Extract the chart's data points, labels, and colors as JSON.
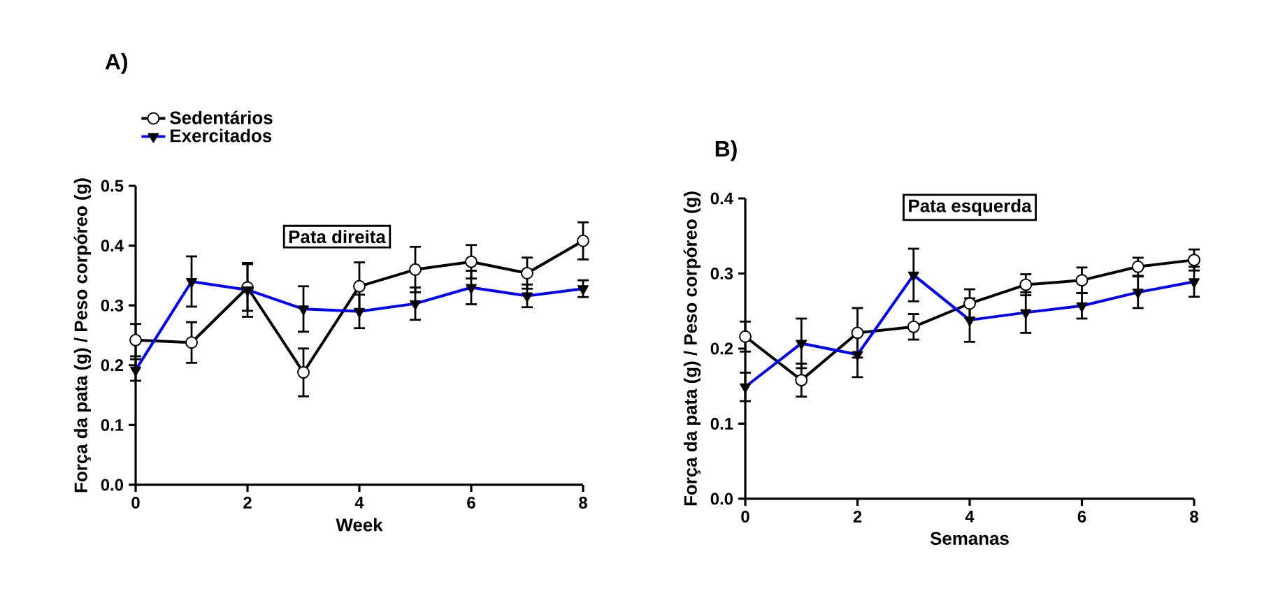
{
  "chart_data": [
    {
      "type": "line",
      "title": "A)",
      "xlabel": "Week",
      "ylabel": "Força da pata (g) / Peso corpóreo (g)",
      "annotations": [
        "Pata direita"
      ],
      "x": [
        0,
        1,
        2,
        3,
        4,
        5,
        6,
        7,
        8
      ],
      "xlim": [
        0,
        8
      ],
      "xticks": [
        0,
        2,
        4,
        6,
        8
      ],
      "ylim": [
        0,
        0.5
      ],
      "yticks": [
        {
          "value": 0,
          "label": "0.0"
        },
        0.1,
        0.2,
        0.3,
        0.4,
        0.5
      ],
      "legend": "top left",
      "grid": false,
      "line_style": "solid",
      "series": [
        {
          "name": "Sedentários",
          "color": "#000000",
          "marker": "circle",
          "values": [
            0.242,
            0.238,
            0.33,
            0.188,
            0.332,
            0.36,
            0.373,
            0.354,
            0.408
          ],
          "errors": [
            0.027,
            0.034,
            0.039,
            0.04,
            0.04,
            0.038,
            0.028,
            0.026,
            0.031
          ]
        },
        {
          "name": "Exercitados",
          "color": "#0000ff",
          "marker": "triangle",
          "values": [
            0.192,
            0.34,
            0.326,
            0.294,
            0.29,
            0.303,
            0.33,
            0.316,
            0.328
          ],
          "errors": [
            0.018,
            0.042,
            0.045,
            0.038,
            0.028,
            0.027,
            0.028,
            0.019,
            0.014
          ]
        }
      ]
    },
    {
      "type": "line",
      "title": "B)",
      "xlabel": "Semanas",
      "ylabel": "Força da pata (g) / Peso corpóreo (g)",
      "annotations": [
        "Pata esquerda"
      ],
      "x": [
        0,
        1,
        2,
        3,
        4,
        5,
        6,
        7,
        8
      ],
      "xlim": [
        0,
        8
      ],
      "xticks": [
        0,
        2,
        4,
        6,
        8
      ],
      "ylim": [
        0,
        0.4
      ],
      "yticks": [
        {
          "value": 0,
          "label": "0.0"
        },
        0.1,
        0.2,
        0.3,
        0.4
      ],
      "grid": false,
      "line_style": "solid",
      "series": [
        {
          "color": "#000000",
          "marker": "circle",
          "values": [
            0.216,
            0.158,
            0.221,
            0.229,
            0.26,
            0.285,
            0.291,
            0.309,
            0.318
          ],
          "errors": [
            0.02,
            0.022,
            0.033,
            0.017,
            0.019,
            0.014,
            0.017,
            0.012,
            0.014
          ]
        },
        {
          "color": "#0000ff",
          "marker": "triangle",
          "values": [
            0.149,
            0.207,
            0.192,
            0.298,
            0.238,
            0.248,
            0.257,
            0.275,
            0.289
          ],
          "errors": [
            0.019,
            0.033,
            0.03,
            0.035,
            0.029,
            0.027,
            0.017,
            0.021,
            0.02
          ]
        }
      ]
    }
  ]
}
